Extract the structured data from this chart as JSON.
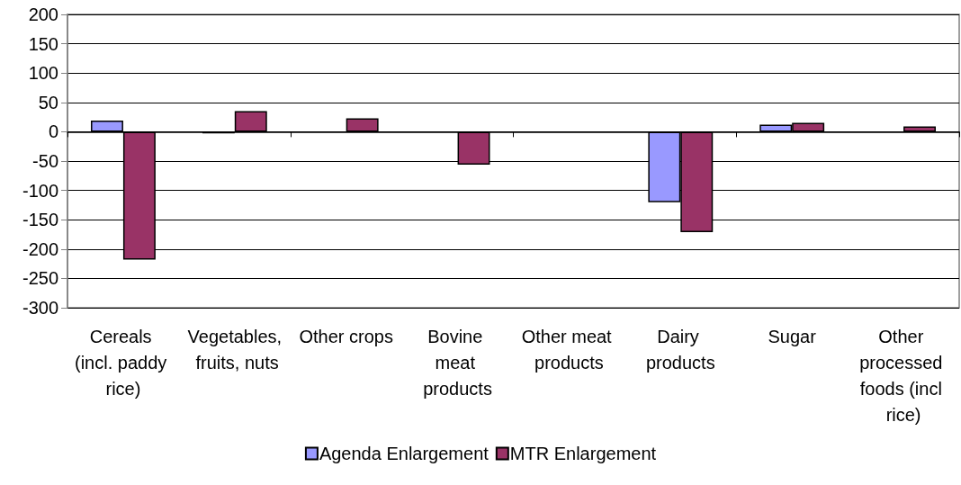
{
  "chart_data": {
    "type": "bar",
    "categories": [
      "Cereals (incl. paddy rice)",
      "Vegetables, fruits, nuts",
      "Other crops",
      "Bovine meat products",
      "Other meat products",
      "Dairy products",
      "Sugar",
      "Other processed foods (incl rice)"
    ],
    "series": [
      {
        "name": "Agenda Enlargement",
        "color": "#9999ff",
        "values": [
          19,
          -3,
          null,
          null,
          null,
          -120,
          12,
          null
        ]
      },
      {
        "name": "MTR Enlargement",
        "color": "#993366",
        "values": [
          -218,
          35,
          23,
          -56,
          null,
          -171,
          15,
          9
        ]
      }
    ],
    "ylim": [
      -300,
      200
    ],
    "yticks": [
      -300,
      -250,
      -200,
      -150,
      -100,
      -50,
      0,
      50,
      100,
      150,
      200
    ],
    "grid": "y",
    "legend": "bottom"
  }
}
